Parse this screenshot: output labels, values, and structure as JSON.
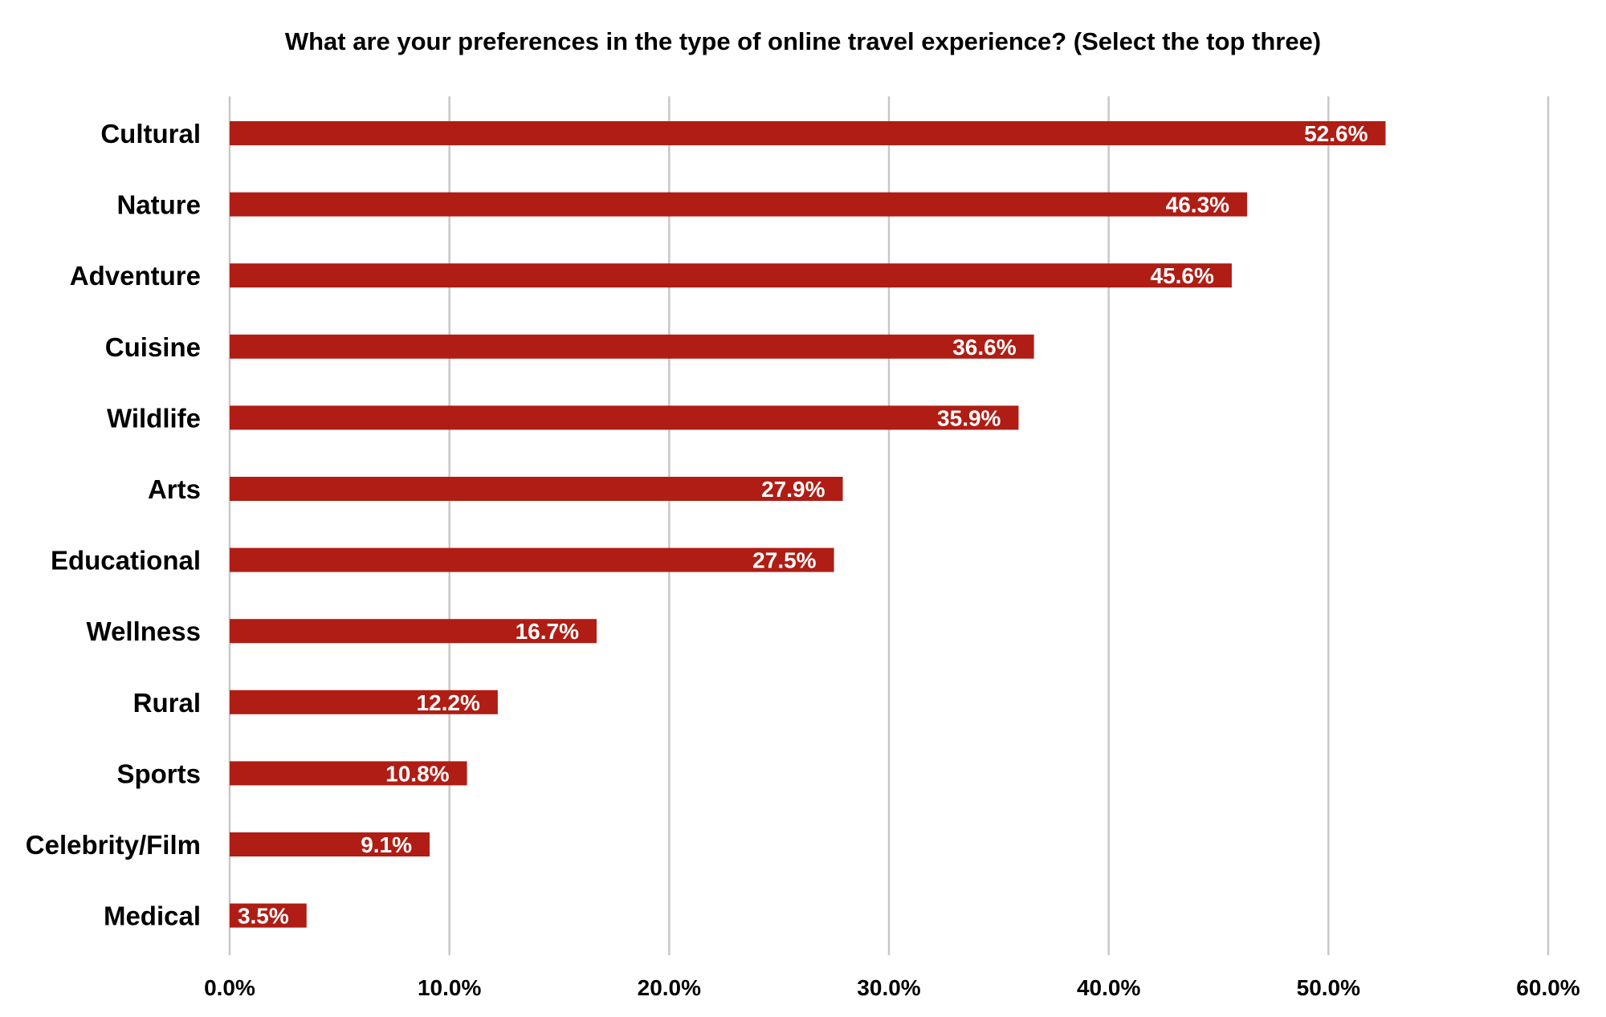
{
  "chart_data": {
    "type": "bar",
    "orientation": "horizontal",
    "title": "What are your preferences in the type of online travel experience? (Select the top three)",
    "xlabel": "",
    "ylabel": "",
    "categories": [
      "Cultural",
      "Nature",
      "Adventure",
      "Cuisine",
      "Wildlife",
      "Arts",
      "Educational",
      "Wellness",
      "Rural",
      "Sports",
      "Celebrity/Film",
      "Medical"
    ],
    "values": [
      52.6,
      46.3,
      45.6,
      36.6,
      35.9,
      27.9,
      27.5,
      16.7,
      12.2,
      10.8,
      9.1,
      3.5
    ],
    "data_labels": [
      "52.6%",
      "46.3%",
      "45.6%",
      "36.6%",
      "35.9%",
      "27.9%",
      "27.5%",
      "16.7%",
      "12.2%",
      "10.8%",
      "9.1%",
      "3.5%"
    ],
    "xlim": [
      0,
      60
    ],
    "x_ticks": [
      0,
      10,
      20,
      30,
      40,
      50,
      60
    ],
    "x_tick_labels": [
      "0.0%",
      "10.0%",
      "20.0%",
      "30.0%",
      "40.0%",
      "50.0%",
      "60.0%"
    ],
    "grid": "vertical",
    "legend": "none",
    "colors": {
      "bar": "#af1d14",
      "gridline": "#c8c8c8",
      "data_label": "#ffffff",
      "text": "#000000"
    }
  }
}
